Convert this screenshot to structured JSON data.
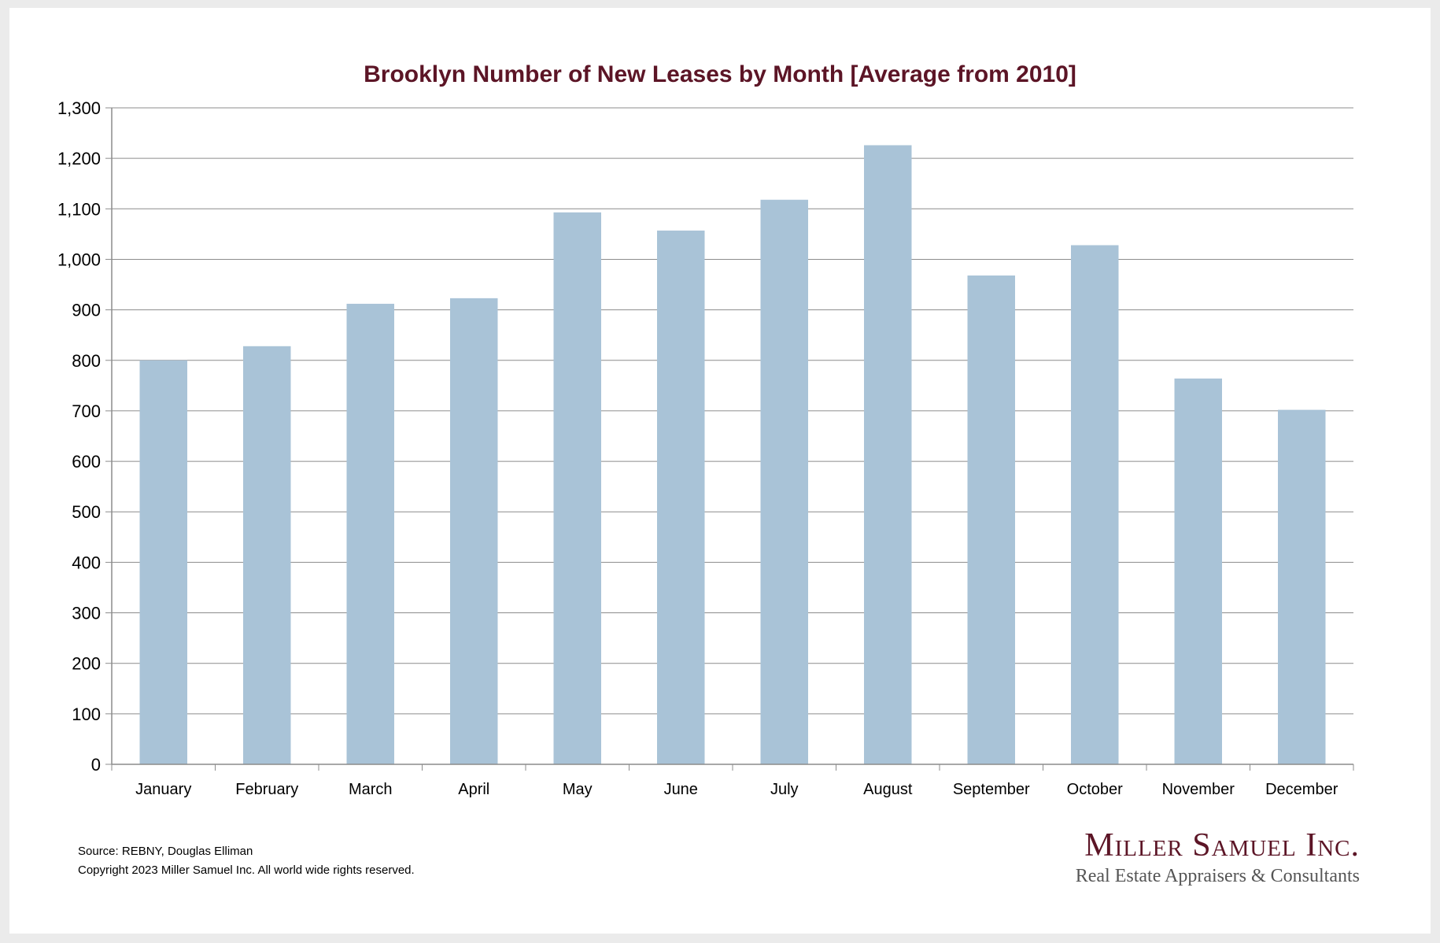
{
  "chart_data": {
    "type": "bar",
    "title": "Brooklyn Number of New Leases by Month [Average from 2010]",
    "categories": [
      "January",
      "February",
      "March",
      "April",
      "May",
      "June",
      "July",
      "August",
      "September",
      "October",
      "November",
      "December"
    ],
    "values": [
      800,
      828,
      912,
      923,
      1093,
      1057,
      1118,
      1226,
      968,
      1028,
      764,
      702
    ],
    "ylim": [
      0,
      1300
    ],
    "y_ticks": [
      0,
      100,
      200,
      300,
      400,
      500,
      600,
      700,
      800,
      900,
      1000,
      1100,
      1200,
      1300
    ],
    "y_tick_labels": [
      "0",
      "100",
      "200",
      "300",
      "400",
      "500",
      "600",
      "700",
      "800",
      "900",
      "1,000",
      "1,100",
      "1,200",
      "1,300"
    ],
    "grid": true,
    "bar_color": "#a9c3d7",
    "grid_color": "#8c8c8c"
  },
  "footer": {
    "source": "Source: REBNY, Douglas Elliman",
    "copyright": "Copyright 2023 Miller Samuel Inc.  All world wide rights reserved."
  },
  "logo": {
    "name": "Miller Samuel Inc.",
    "tagline": "Real Estate Appraisers & Consultants"
  }
}
